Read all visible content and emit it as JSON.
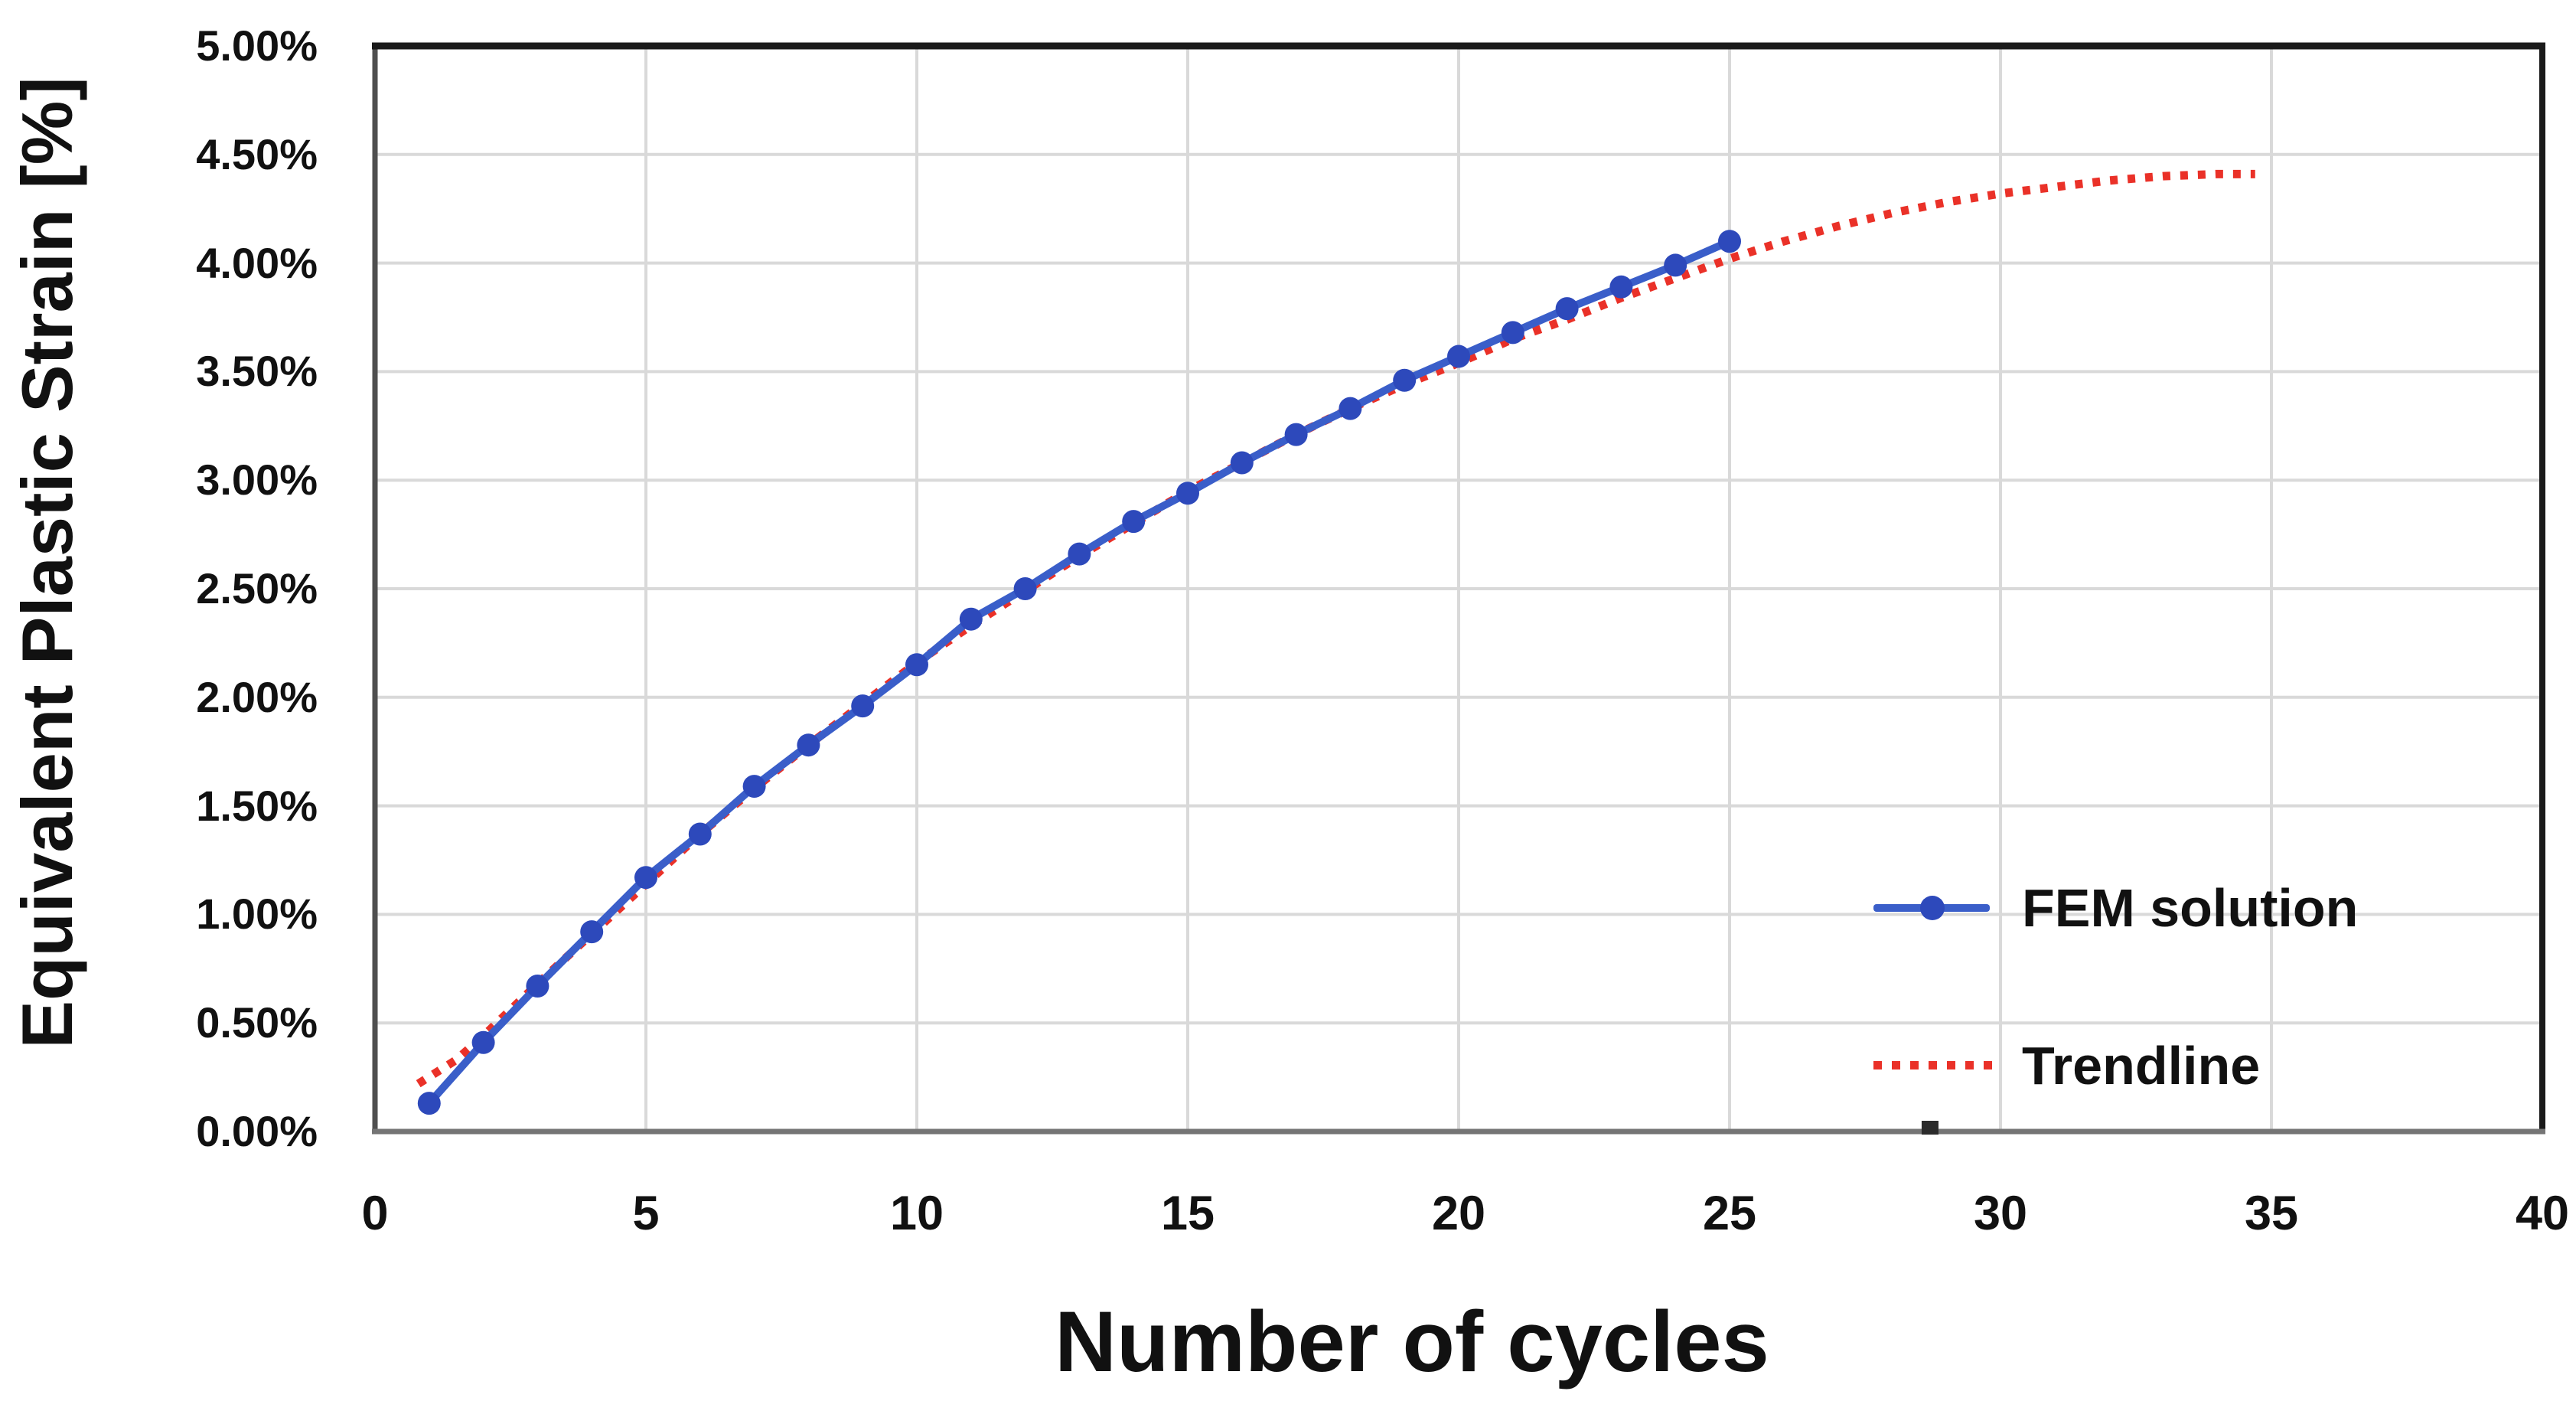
{
  "chart_data": {
    "type": "line",
    "title": "",
    "xlabel": "Number of cycles",
    "ylabel": "Equivalent Plastic Strain [%]",
    "xlim": [
      0,
      40
    ],
    "ylim_percent": [
      0,
      5
    ],
    "grid": true,
    "x_ticks": [
      0,
      5,
      10,
      15,
      20,
      25,
      30,
      35,
      40
    ],
    "x_tick_labels": [
      "0",
      "5",
      "10",
      "15",
      "20",
      "25",
      "30",
      "35",
      "40"
    ],
    "y_ticks_percent": [
      0,
      0.5,
      1,
      1.5,
      2,
      2.5,
      3,
      3.5,
      4,
      4.5,
      5
    ],
    "y_tick_labels": [
      "0.00%",
      "0.50%",
      "1.00%",
      "1.50%",
      "2.00%",
      "2.50%",
      "3.00%",
      "3.50%",
      "4.00%",
      "4.50%",
      "5.00%"
    ],
    "legend_position": "inside-right-middle",
    "stray_mark_cycle": 28.7,
    "series": [
      {
        "name": "FEM solution",
        "style": "solid-line-with-markers",
        "color": "#3a5ec9",
        "marker_color": "#2d49bb",
        "x": [
          1,
          2,
          3,
          4,
          5,
          6,
          7,
          8,
          9,
          10,
          11,
          12,
          13,
          14,
          15,
          16,
          17,
          18,
          19,
          20,
          21,
          22,
          23,
          24,
          25
        ],
        "y_percent": [
          0.13,
          0.41,
          0.67,
          0.92,
          1.17,
          1.37,
          1.59,
          1.78,
          1.96,
          2.15,
          2.36,
          2.5,
          2.66,
          2.81,
          2.94,
          3.08,
          3.21,
          3.33,
          3.46,
          3.57,
          3.68,
          3.79,
          3.89,
          3.99,
          4.1
        ]
      },
      {
        "name": "Trendline",
        "style": "dotted-line",
        "color": "#ea3128",
        "x": [
          0.8,
          1.5,
          2,
          3,
          4,
          5,
          6,
          7,
          8,
          9,
          10,
          11,
          12,
          13,
          14,
          15,
          16,
          17,
          18,
          19,
          20,
          21,
          22,
          23,
          24,
          25,
          26,
          27,
          28,
          29,
          30,
          31,
          32,
          33,
          34,
          34.7
        ],
        "y_percent": [
          0.22,
          0.33,
          0.44,
          0.68,
          0.91,
          1.14,
          1.37,
          1.58,
          1.78,
          1.97,
          2.16,
          2.33,
          2.49,
          2.65,
          2.8,
          2.95,
          3.08,
          3.21,
          3.33,
          3.44,
          3.54,
          3.65,
          3.74,
          3.84,
          3.93,
          4.02,
          4.1,
          4.17,
          4.23,
          4.28,
          4.32,
          4.35,
          4.38,
          4.4,
          4.41,
          4.41
        ]
      }
    ]
  },
  "legend": {
    "fem_label": "FEM solution",
    "trend_label": "Trendline"
  },
  "colors": {
    "fem_line": "#3a5ec9",
    "fem_marker": "#2d49bb",
    "trend_red": "#ea3128",
    "gridline": "#d9d9d9",
    "border": "#4f4f4f",
    "border_top": "#1a1a1a",
    "border_bottom": "#757575",
    "text": "#111111",
    "stray_mark": "#2b2b2b"
  }
}
